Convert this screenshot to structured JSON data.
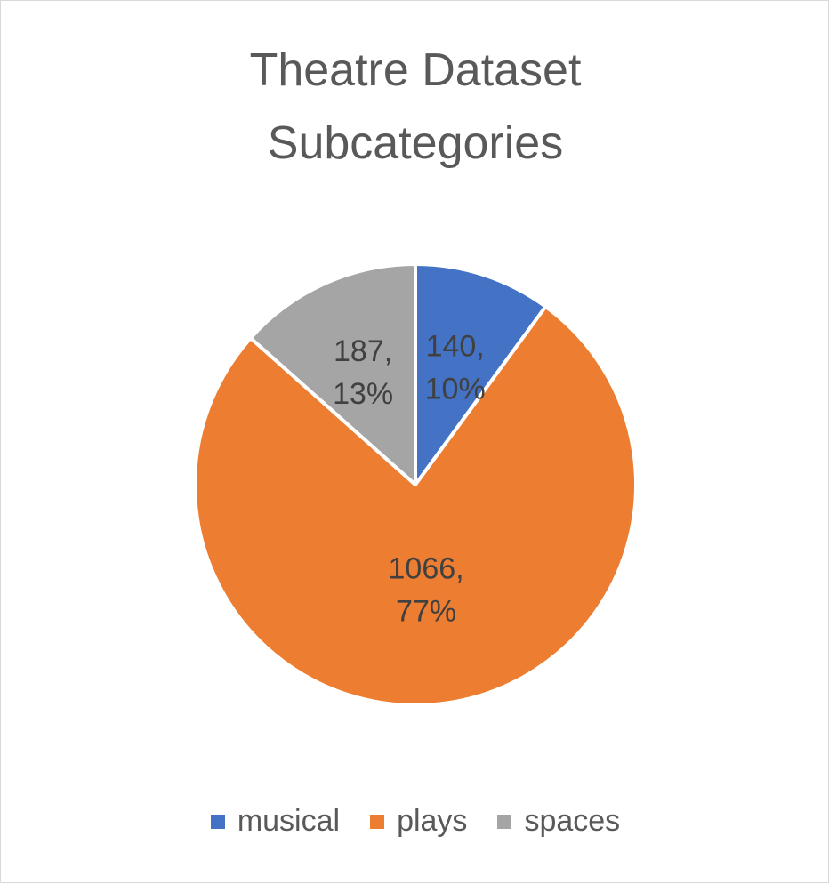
{
  "chart_data": {
    "type": "pie",
    "title_lines": [
      "Theatre Dataset",
      "Subcategories"
    ],
    "categories": [
      "musical",
      "plays",
      "spaces"
    ],
    "values": [
      140,
      1066,
      187
    ],
    "percent_labels": [
      "10%",
      "77%",
      "13%"
    ],
    "colors": [
      "#4472C4",
      "#ED7D31",
      "#A5A5A5"
    ],
    "start_angle_deg": 0,
    "direction": "clockwise",
    "legend_position": "bottom"
  }
}
